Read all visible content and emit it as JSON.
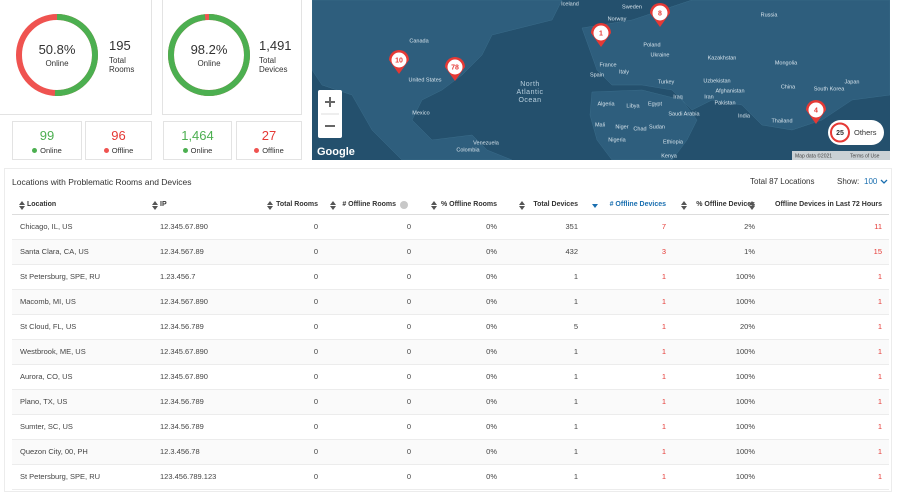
{
  "summary_cards": [
    {
      "percent": {
        "value": 50.8,
        "label": "50.8%"
      },
      "percent_label": "Online",
      "total": "195",
      "total_label": "Total Rooms",
      "online": "99",
      "online_label": "Online",
      "offline": "96",
      "offline_label": "Offline"
    },
    {
      "percent": {
        "value": 98.2,
        "label": "98.2%"
      },
      "percent_label": "Online",
      "total": "1,491",
      "total_label": "Total Devices",
      "online": "1,464",
      "online_label": "Online",
      "offline": "27",
      "offline_label": "Offline"
    }
  ],
  "map": {
    "labels": [
      "Iceland",
      "Sweden",
      "Norway",
      "Russia",
      "Canada",
      "United States",
      "Poland",
      "Ukraine",
      "France",
      "Spain",
      "Italy",
      "Kazakhstan",
      "Mongolia",
      "Turkey",
      "Uzbekistan",
      "Iraq",
      "Iran",
      "Afghanistan",
      "Pakistan",
      "China",
      "Japan",
      "South Korea",
      "North",
      "Atlantic",
      "Ocean",
      "Mexico",
      "Algeria",
      "Libya",
      "Egypt",
      "Saudi Arabia",
      "India",
      "Thailand",
      "Mali",
      "Niger",
      "Chad",
      "Sudan",
      "Nigeria",
      "Ethiopia",
      "Venezuela",
      "Colombia",
      "Kenya"
    ],
    "markers": [
      "1",
      "8",
      "10",
      "78",
      "4"
    ],
    "others": {
      "count": "25",
      "label": "Others"
    },
    "logo": "Google",
    "attribution": "Map data ©2021",
    "terms": "Terms of Use"
  },
  "table": {
    "title": "Locations with Problematic Rooms and Devices",
    "total": "Total 87 Locations",
    "show_label": "Show:",
    "page_size": "100",
    "columns": [
      "Location",
      "IP",
      "Total Rooms",
      "# Offline Rooms",
      "% Offline Rooms",
      "Total Devices",
      "# Offline Devices",
      "% Offline Devices",
      "Offline Devices in Last 72 Hours"
    ],
    "rows": [
      [
        "Chicago, IL, US",
        "12.345.67.890",
        "0",
        "0",
        "0%",
        "351",
        "7",
        "2%",
        "11"
      ],
      [
        "Santa Clara, CA, US",
        "12.34.567.89",
        "0",
        "0",
        "0%",
        "432",
        "3",
        "1%",
        "15"
      ],
      [
        "St Petersburg, SPE, RU",
        "1.23.456.7",
        "0",
        "0",
        "0%",
        "1",
        "1",
        "100%",
        "1"
      ],
      [
        "Macomb, MI, US",
        "12.34.567.890",
        "0",
        "0",
        "0%",
        "1",
        "1",
        "100%",
        "1"
      ],
      [
        "St Cloud, FL, US",
        "12.34.56.789",
        "0",
        "0",
        "0%",
        "5",
        "1",
        "20%",
        "1"
      ],
      [
        "Westbrook, ME, US",
        "12.345.67.890",
        "0",
        "0",
        "0%",
        "1",
        "1",
        "100%",
        "1"
      ],
      [
        "Aurora, CO, US",
        "12.345.67.890",
        "0",
        "0",
        "0%",
        "1",
        "1",
        "100%",
        "1"
      ],
      [
        "Plano, TX, US",
        "12.34.56.789",
        "0",
        "0",
        "0%",
        "1",
        "1",
        "100%",
        "1"
      ],
      [
        "Sumter, SC, US",
        "12.34.56.789",
        "0",
        "0",
        "0%",
        "1",
        "1",
        "100%",
        "1"
      ],
      [
        "Quezon City, 00, PH",
        "12.3.456.78",
        "0",
        "0",
        "0%",
        "1",
        "1",
        "100%",
        "1"
      ],
      [
        "St Petersburg, SPE, RU",
        "123.456.789.123",
        "0",
        "0",
        "0%",
        "1",
        "1",
        "100%",
        "1"
      ]
    ]
  }
}
